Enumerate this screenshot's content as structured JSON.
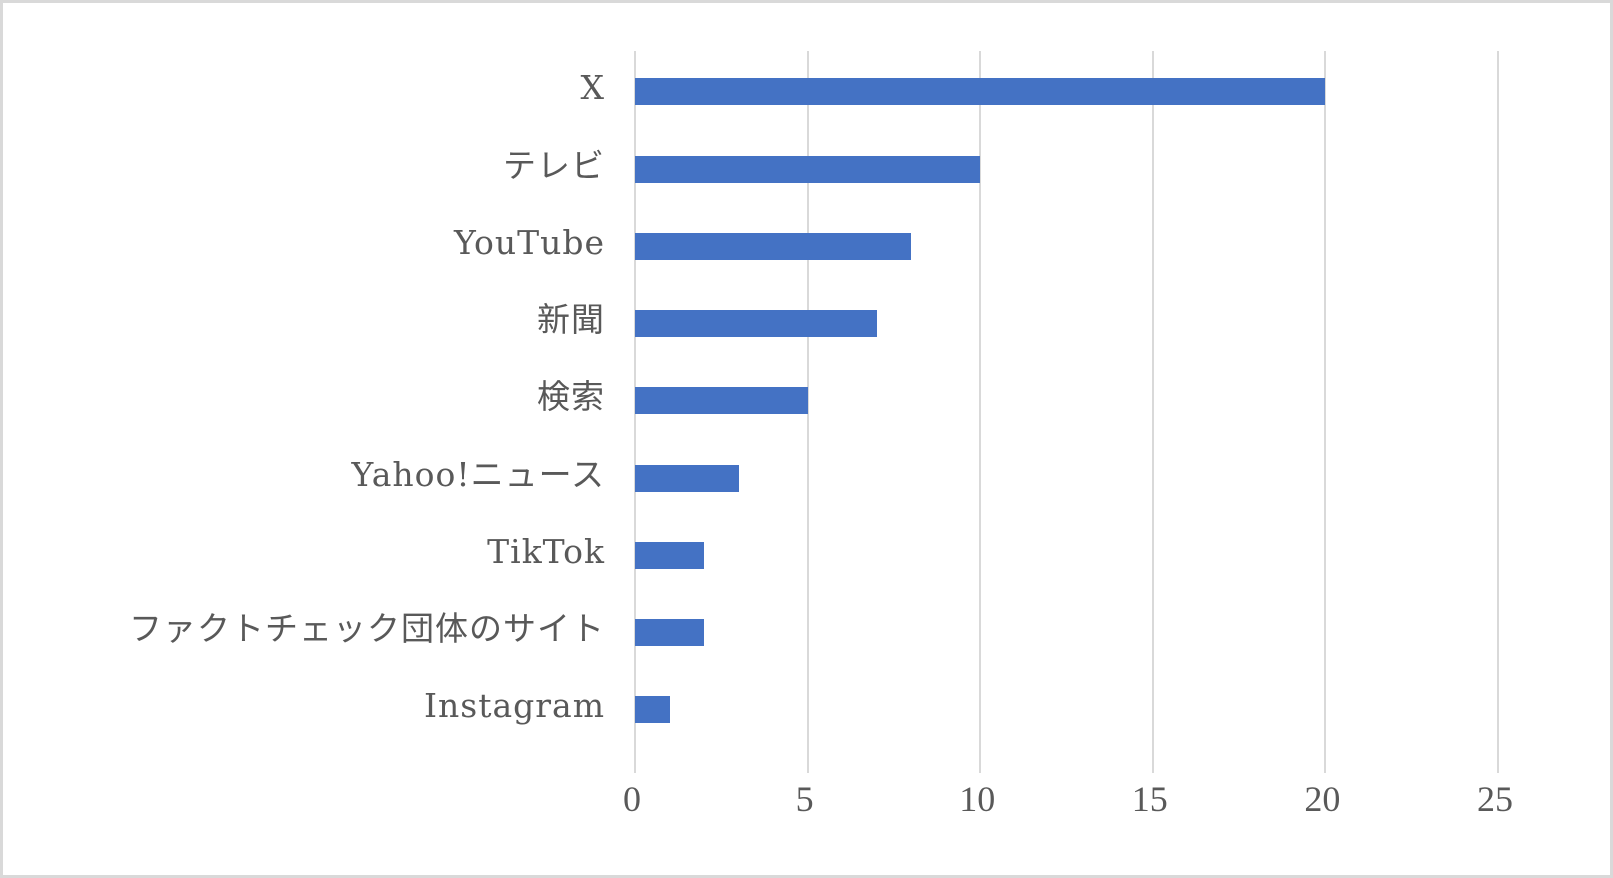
{
  "chart_data": {
    "type": "bar",
    "orientation": "horizontal",
    "title": "",
    "xlabel": "",
    "ylabel": "",
    "categories": [
      "X",
      "テレビ",
      "YouTube",
      "新聞",
      "検索",
      "Yahoo!ニュース",
      "TikTok",
      "ファクトチェック団体のサイト",
      "Instagram"
    ],
    "values": [
      20,
      10,
      8,
      7,
      5,
      3,
      2,
      2,
      1
    ],
    "xlim": [
      0,
      25
    ],
    "x_ticks": [
      "0",
      "5",
      "10",
      "15",
      "20",
      "25"
    ],
    "grid": "vertical",
    "legend": "none",
    "bar_color": "#4472c4",
    "grid_color": "#d9d9d9",
    "text_color": "#595959"
  },
  "labels": {
    "cat0": "X",
    "cat1": "テレビ",
    "cat2": "YouTube",
    "cat3": "新聞",
    "cat4": "検索",
    "cat5": "Yahoo!ニュース",
    "cat6": "TikTok",
    "cat7": "ファクトチェック団体のサイト",
    "cat8": "Instagram",
    "tick0": "0",
    "tick1": "5",
    "tick2": "10",
    "tick3": "15",
    "tick4": "20",
    "tick5": "25"
  }
}
